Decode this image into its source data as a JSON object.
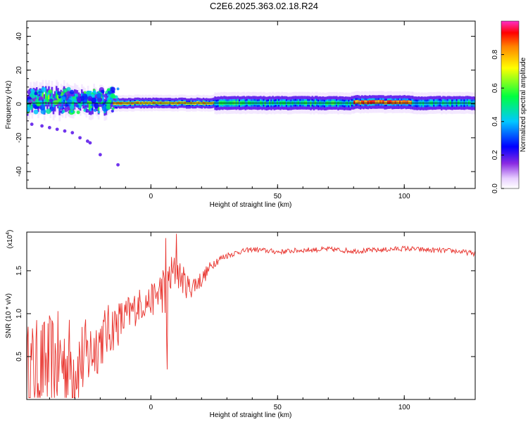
{
  "page": {
    "title": "C2E6.2025.363.02.18.R24"
  },
  "colors": {
    "snr_line": "#e8322c",
    "axes": "#000000",
    "background": "#ffffff"
  },
  "chart_data": [
    {
      "type": "heatmap",
      "xlabel": "Height of straight line (km)",
      "ylabel": "Frequency (Hz)",
      "xlim": [
        -49,
        128
      ],
      "ylim": [
        -50,
        49
      ],
      "xticks": [
        0,
        50,
        100
      ],
      "yticks": [
        40,
        20,
        0,
        -20,
        -40
      ],
      "colorbar": {
        "label": "Normalized spectral amplitude",
        "ticks": [
          "0.0",
          "0.2",
          "0.4",
          "0.6",
          "0.8"
        ],
        "range": [
          0,
          1
        ]
      },
      "spectral_line": [
        {
          "x_start": -49,
          "x_end": -30,
          "freq": 2,
          "spread": 6,
          "amplitude": 0.45
        },
        {
          "x_start": -30,
          "x_end": -15,
          "freq": 1,
          "spread": 5,
          "amplitude": 0.4
        },
        {
          "x_start": -15,
          "x_end": 25,
          "freq": 0.5,
          "spread": 3,
          "amplitude": 0.75
        },
        {
          "x_start": 25,
          "x_end": 80,
          "freq": 0.5,
          "spread": 4,
          "amplitude": 0.5
        },
        {
          "x_start": 80,
          "x_end": 103,
          "freq": 1,
          "spread": 4,
          "amplitude": 0.85
        },
        {
          "x_start": 103,
          "x_end": 128,
          "freq": 0.5,
          "spread": 4,
          "amplitude": 0.45
        }
      ],
      "scatter_points": [
        {
          "x": -47,
          "y": -12
        },
        {
          "x": -43,
          "y": -13
        },
        {
          "x": -40,
          "y": -14
        },
        {
          "x": -37,
          "y": -15
        },
        {
          "x": -34,
          "y": -16
        },
        {
          "x": -31,
          "y": -17
        },
        {
          "x": -28,
          "y": -20
        },
        {
          "x": -25,
          "y": -22
        },
        {
          "x": -24,
          "y": -23
        },
        {
          "x": -20,
          "y": -30
        },
        {
          "x": -13,
          "y": -36
        }
      ]
    },
    {
      "type": "line",
      "xlabel": "Height of straight line (km)",
      "ylabel": "SNR (10 * v/v)",
      "yscale_label": "(x10",
      "yscale_exponent": "4",
      "xlim": [
        -49,
        128
      ],
      "ylim": [
        0,
        1.95
      ],
      "xticks": [
        0,
        50,
        100
      ],
      "yticks": [
        0.5,
        1.0,
        1.5
      ],
      "ytick_labels": [
        "0.5",
        "1.0",
        "1.5"
      ],
      "series": [
        {
          "name": "SNR",
          "envelope_x": [
            -49,
            -40,
            -35,
            -30,
            -25,
            -20,
            -15,
            -10,
            -5,
            0,
            5,
            6,
            7,
            10,
            15,
            20,
            25,
            30,
            35,
            40,
            50,
            60,
            70,
            80,
            90,
            100,
            110,
            120,
            128
          ],
          "envelope_y": [
            0.35,
            0.4,
            0.45,
            0.4,
            0.5,
            0.7,
            0.85,
            0.95,
            1.1,
            1.15,
            1.3,
            0.9,
            1.4,
            1.5,
            1.3,
            1.4,
            1.6,
            1.68,
            1.72,
            1.75,
            1.72,
            1.74,
            1.75,
            1.73,
            1.74,
            1.76,
            1.74,
            1.73,
            1.7
          ],
          "noise_amplitude": [
            0.55,
            0.6,
            0.6,
            0.55,
            0.45,
            0.35,
            0.3,
            0.25,
            0.2,
            0.18,
            0.3,
            0.3,
            0.3,
            0.2,
            0.15,
            0.1,
            0.06,
            0.04,
            0.03,
            0.03,
            0.03,
            0.03,
            0.03,
            0.03,
            0.03,
            0.03,
            0.03,
            0.03,
            0.03
          ],
          "notable_points": [
            {
              "x": 6.5,
              "y": 0.35
            },
            {
              "x": 10,
              "y": 1.93
            },
            {
              "x": 6,
              "y": 1.88
            }
          ]
        }
      ]
    }
  ]
}
